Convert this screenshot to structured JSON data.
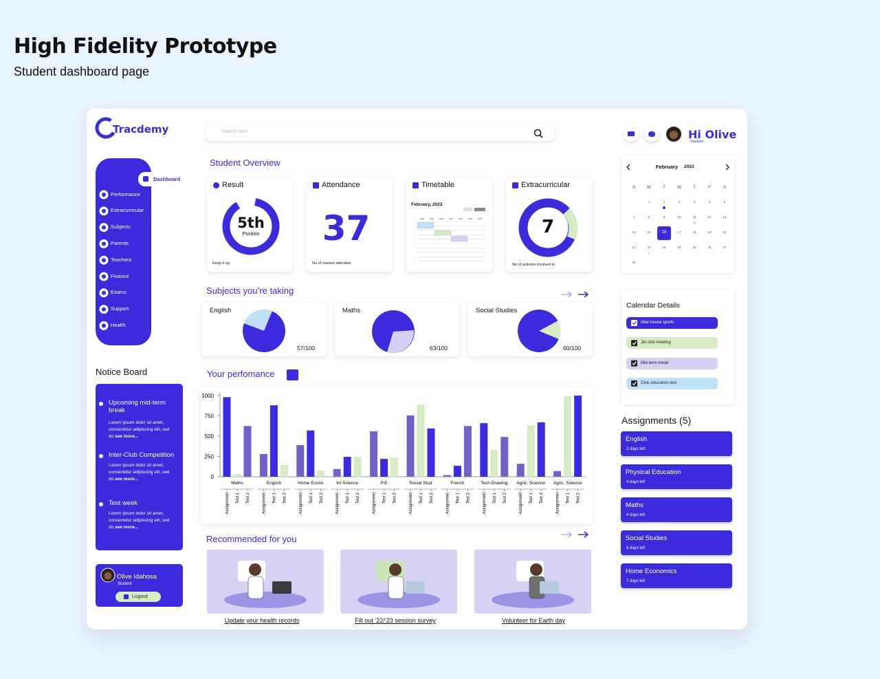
{
  "header": {
    "title": "High Fidelity Prototype",
    "subtitle": "Student dashboard page"
  },
  "brand": "Tracdemy",
  "search_placeholder": "Search here",
  "user": {
    "greeting": "Hi Olive",
    "role": "Student"
  },
  "nav": [
    "Dashboard",
    "Performance",
    "Extracurricular",
    "Subjects",
    "Parents",
    "Teachers",
    "Finance",
    "Exams",
    "Support",
    "Health"
  ],
  "overview": {
    "title": "Student Overview",
    "cards": [
      {
        "title": "Result",
        "value": "5th",
        "sub": "Position",
        "caption": "Keep it up"
      },
      {
        "title": "Attendance",
        "value": "37",
        "caption": "No of classes attended"
      },
      {
        "title": "Timetable",
        "month": "February, 2023"
      },
      {
        "title": "Extracurricular",
        "value": "7",
        "caption": "No of activites involved in"
      }
    ]
  },
  "subjects": {
    "title": "Subjects you’re taking",
    "items": [
      {
        "name": "English",
        "score": "57/100"
      },
      {
        "name": "Maths",
        "score": "63/100"
      },
      {
        "name": "Social Studies",
        "score": "60/100"
      }
    ]
  },
  "chart_data": {
    "type": "bar",
    "title": "Your perfomance",
    "categories": [
      "Maths",
      "English",
      "Home Econs",
      "Int.Science",
      "P.E",
      "Social Stud",
      "French",
      "Tech Drawing",
      "Agric. Science",
      "Agric. Science"
    ],
    "series": [
      {
        "name": "Assignment",
        "values": [
          980,
          280,
          390,
          95,
          560,
          755,
          20,
          660,
          160,
          70
        ],
        "colors": [
          "#3a2be0",
          "#7262c8",
          "#7262c8",
          "#7262c8",
          "#7262c8",
          "#7262c8",
          "#7262c8",
          "#3a2be0",
          "#7262c8",
          "#7262c8"
        ]
      },
      {
        "name": "Test 1",
        "values": [
          35,
          880,
          570,
          245,
          220,
          890,
          135,
          330,
          635,
          990
        ],
        "colors": [
          "#d4ebc3",
          "#3a2be0",
          "#3a2be0",
          "#3a2be0",
          "#3a2be0",
          "#d4ebc3",
          "#3a2be0",
          "#d4ebc3",
          "#d4ebc3",
          "#d4ebc3"
        ]
      },
      {
        "name": "Test 2",
        "values": [
          625,
          145,
          75,
          245,
          235,
          595,
          625,
          490,
          670,
          1000
        ],
        "colors": [
          "#7262c8",
          "#d4ebc3",
          "#d4ebc3",
          "#d4ebc3",
          "#d4ebc3",
          "#3a2be0",
          "#7262c8",
          "#7262c8",
          "#3a2be0",
          "#3a2be0"
        ]
      }
    ],
    "ylim": [
      0,
      1000
    ],
    "yticks": [
      0,
      250,
      500,
      750,
      1000
    ]
  },
  "recommended": {
    "title": "Recommended for you",
    "items": [
      "Update your health records",
      "Fill out ‘22/‘23 session survey",
      "Volunteer for Earth day"
    ]
  },
  "notice_board": {
    "title": "Notice Board",
    "items": [
      {
        "title": "Upcoming mid-term break",
        "body": "Lorem ipsum dolor sit amet, consectetur adipiscing elit, sed do",
        "more": "see more..."
      },
      {
        "title": "Inter-Club Competition",
        "body": "Lorem ipsum dolor sit amet, consectetur adipiscing elit, sed do",
        "more": "see more..."
      },
      {
        "title": "Test week",
        "body": "Lorem ipsum dolor sit amet, consectetur adipiscing elit, sed do",
        "more": "see more..."
      }
    ]
  },
  "profile": {
    "name": "Olive Idahosa",
    "role": "Student",
    "logout": "Logout"
  },
  "calendar": {
    "month": "February",
    "year": "2023",
    "weekdays": [
      "S",
      "M",
      "T",
      "W",
      "T",
      "F",
      "S"
    ],
    "weeks": [
      [
        null,
        "1",
        "2",
        "3",
        "4",
        "5",
        "6"
      ],
      [
        "7",
        "8",
        "9",
        "10",
        "11",
        "12",
        "13"
      ],
      [
        "14",
        "15",
        "16",
        "17",
        "18",
        "19",
        "20"
      ],
      [
        "21",
        "22",
        "23",
        "24",
        "25",
        "26",
        "27"
      ],
      [
        "29"
      ]
    ],
    "selected_day": "16"
  },
  "calendar_details": {
    "title": "Calendar Details",
    "items": [
      {
        "label": "Inter-house sports",
        "color": "#3b2bdc"
      },
      {
        "label": "Jet club meeting",
        "color": "#d4ebc3"
      },
      {
        "label": "Mid-term break",
        "color": "#d6d0f2"
      },
      {
        "label": "Civic education test",
        "color": "#bfe0f7"
      }
    ]
  },
  "assignments": {
    "title": "Assignments (5)",
    "items": [
      {
        "subject": "English",
        "due": "2 days left"
      },
      {
        "subject": "Physical Education",
        "due": "4 days left"
      },
      {
        "subject": "Maths",
        "due": "4 days left"
      },
      {
        "subject": "Social Studies",
        "due": "6 days left"
      },
      {
        "subject": "Home Economics",
        "due": "7 days left"
      }
    ]
  }
}
